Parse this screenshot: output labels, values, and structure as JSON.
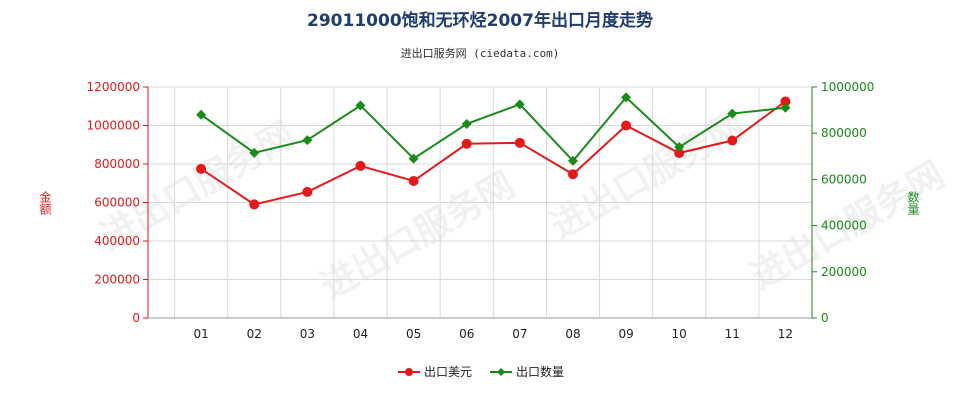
{
  "chart_data": {
    "type": "line",
    "title": "29011000饱和无环烃2007年出口月度走势",
    "subtitle": "进出口服务网 (ciedata.com)",
    "categories": [
      "01",
      "02",
      "03",
      "04",
      "05",
      "06",
      "07",
      "08",
      "09",
      "10",
      "11",
      "12"
    ],
    "y_left": {
      "label": "金额",
      "range": [
        0,
        1200000
      ],
      "ticks": [
        "0",
        "200000",
        "400000",
        "600000",
        "800000",
        "1000000",
        "1200000"
      ],
      "color": "#e31a1c"
    },
    "y_right": {
      "label": "数量",
      "range": [
        0,
        1000000
      ],
      "ticks": [
        "0",
        "200000",
        "400000",
        "600000",
        "800000",
        "1000000"
      ],
      "color": "#1a8a1a"
    },
    "series": [
      {
        "name": "出口美元",
        "axis": "left",
        "color": "#e31a1c",
        "values": [
          775000,
          590000,
          655000,
          790000,
          712000,
          905000,
          910000,
          747000,
          1000000,
          857000,
          922000,
          1125000
        ]
      },
      {
        "name": "出口数量",
        "axis": "right",
        "color": "#1a8a1a",
        "values": [
          880000,
          715000,
          770000,
          920000,
          690000,
          840000,
          925000,
          680000,
          955000,
          740000,
          885000,
          910000
        ]
      }
    ],
    "grid": true,
    "legend_position": "bottom-center",
    "watermark": "进出口服务网"
  }
}
